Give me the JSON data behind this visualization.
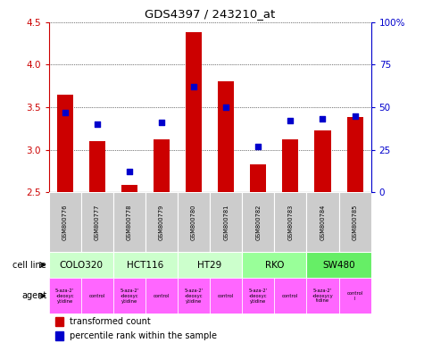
{
  "title": "GDS4397 / 243210_at",
  "samples": [
    "GSM800776",
    "GSM800777",
    "GSM800778",
    "GSM800779",
    "GSM800780",
    "GSM800781",
    "GSM800782",
    "GSM800783",
    "GSM800784",
    "GSM800785"
  ],
  "transformed_counts": [
    3.65,
    3.1,
    2.58,
    3.12,
    4.38,
    3.8,
    2.83,
    3.12,
    3.23,
    3.38
  ],
  "percentile_ranks": [
    47,
    40,
    12,
    41,
    62,
    50,
    27,
    42,
    43,
    45
  ],
  "ylim": [
    2.5,
    4.5
  ],
  "yticks_left": [
    2.5,
    3.0,
    3.5,
    4.0,
    4.5
  ],
  "yticks_right": [
    0,
    25,
    50,
    75,
    100
  ],
  "bar_color": "#cc0000",
  "dot_color": "#0000cc",
  "cell_groups": [
    {
      "name": "COLO320",
      "start": 0,
      "end": 2,
      "color": "#ccffcc"
    },
    {
      "name": "HCT116",
      "start": 2,
      "end": 4,
      "color": "#ccffcc"
    },
    {
      "name": "HT29",
      "start": 4,
      "end": 6,
      "color": "#ccffcc"
    },
    {
      "name": "RKO",
      "start": 6,
      "end": 8,
      "color": "#99ff99"
    },
    {
      "name": "SW480",
      "start": 8,
      "end": 10,
      "color": "#66ee66"
    }
  ],
  "agent_items": [
    {
      "name": "5-aza-2'\n-deoxyc\nytidine",
      "start": 0,
      "end": 1
    },
    {
      "name": "control",
      "start": 1,
      "end": 2
    },
    {
      "name": "5-aza-2'\n-deoxyc\nytidine",
      "start": 2,
      "end": 3
    },
    {
      "name": "control",
      "start": 3,
      "end": 4
    },
    {
      "name": "5-aza-2'\n-deoxyc\nytidine",
      "start": 4,
      "end": 5
    },
    {
      "name": "control",
      "start": 5,
      "end": 6
    },
    {
      "name": "5-aza-2'\n-deoxyc\nytidine",
      "start": 6,
      "end": 7
    },
    {
      "name": "control",
      "start": 7,
      "end": 8
    },
    {
      "name": "5-aza-2'\n-deoxycy\ntidine",
      "start": 8,
      "end": 9
    },
    {
      "name": "control\nl",
      "start": 9,
      "end": 10
    }
  ],
  "agent_color": "#ff66ff",
  "sample_bg_color": "#cccccc",
  "bg_color": "#ffffff",
  "label_left_cellline": "cell line",
  "label_left_agent": "agent",
  "legend_bar": "transformed count",
  "legend_dot": "percentile rank within the sample"
}
